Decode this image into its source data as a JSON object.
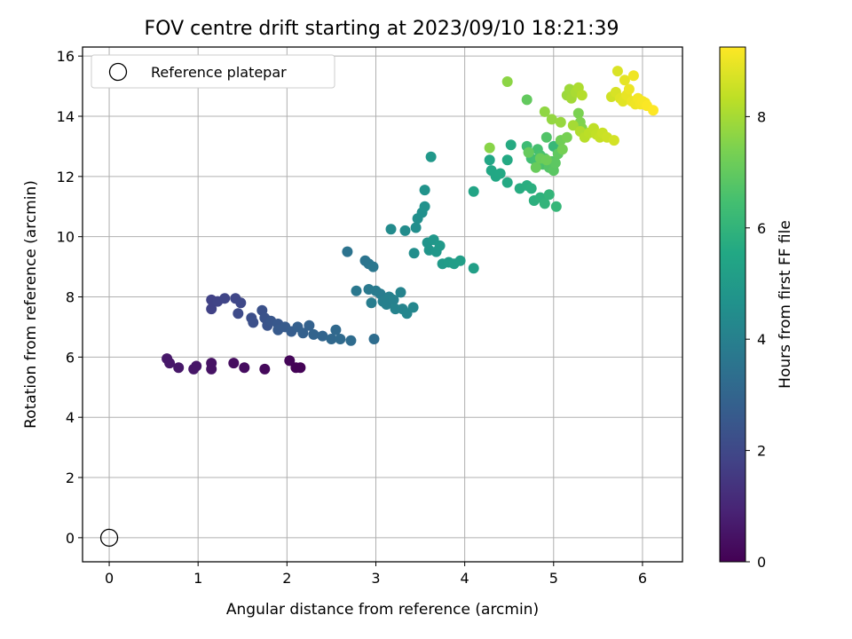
{
  "chart_data": {
    "type": "scatter",
    "title": "FOV centre drift starting at 2023/09/10 18:21:39",
    "xlabel": "Angular distance from reference (arcmin)",
    "ylabel": "Rotation from reference (arcmin)",
    "xlim": [
      -0.3,
      6.45
    ],
    "ylim": [
      -0.8,
      16.3
    ],
    "xticks": [
      0,
      1,
      2,
      3,
      4,
      5,
      6
    ],
    "yticks": [
      0,
      2,
      4,
      6,
      8,
      10,
      12,
      14,
      16
    ],
    "grid": true,
    "legend": {
      "position": "upper-left",
      "entries": [
        "Reference platepar"
      ]
    },
    "reference_point": {
      "x": 0,
      "y": 0
    },
    "colorbar": {
      "label": "Hours from first FF file",
      "min": 0,
      "max": 9.25,
      "ticks": [
        0,
        2,
        4,
        6,
        8
      ],
      "colormap": "viridis"
    },
    "points": [
      [
        0.65,
        5.95,
        0.6
      ],
      [
        0.68,
        5.8,
        0.6
      ],
      [
        0.78,
        5.65,
        0.6
      ],
      [
        0.95,
        5.6,
        0.55
      ],
      [
        0.98,
        5.7,
        0.55
      ],
      [
        1.15,
        5.8,
        0.45
      ],
      [
        1.15,
        5.6,
        0.45
      ],
      [
        1.4,
        5.8,
        0.35
      ],
      [
        1.52,
        5.65,
        0.3
      ],
      [
        1.75,
        5.6,
        0.2
      ],
      [
        2.03,
        5.88,
        0.1
      ],
      [
        2.1,
        5.65,
        0.05
      ],
      [
        2.15,
        5.65,
        0.05
      ],
      [
        1.15,
        7.9,
        1.8
      ],
      [
        1.15,
        7.6,
        1.8
      ],
      [
        1.22,
        7.85,
        1.85
      ],
      [
        1.3,
        7.95,
        1.9
      ],
      [
        1.42,
        7.95,
        1.95
      ],
      [
        1.48,
        7.8,
        2.0
      ],
      [
        1.45,
        7.45,
        2.1
      ],
      [
        1.6,
        7.3,
        2.2
      ],
      [
        1.62,
        7.15,
        2.25
      ],
      [
        1.72,
        7.55,
        2.3
      ],
      [
        1.75,
        7.3,
        2.35
      ],
      [
        1.78,
        7.05,
        2.4
      ],
      [
        1.82,
        7.2,
        2.45
      ],
      [
        1.9,
        7.1,
        2.55
      ],
      [
        1.9,
        6.9,
        2.6
      ],
      [
        1.98,
        7.0,
        2.65
      ],
      [
        2.05,
        6.85,
        2.7
      ],
      [
        2.12,
        7.0,
        2.8
      ],
      [
        2.18,
        6.8,
        2.85
      ],
      [
        2.25,
        7.05,
        2.9
      ],
      [
        2.3,
        6.75,
        2.95
      ],
      [
        2.4,
        6.7,
        3.0
      ],
      [
        2.5,
        6.6,
        3.1
      ],
      [
        2.55,
        6.9,
        3.15
      ],
      [
        2.6,
        6.6,
        3.2
      ],
      [
        2.72,
        6.55,
        3.25
      ],
      [
        2.98,
        6.6,
        3.3
      ],
      [
        2.68,
        9.5,
        3.5
      ],
      [
        2.88,
        9.2,
        3.55
      ],
      [
        2.92,
        9.1,
        3.6
      ],
      [
        2.97,
        9.0,
        3.65
      ],
      [
        2.78,
        8.2,
        3.7
      ],
      [
        2.92,
        8.25,
        3.75
      ],
      [
        3.0,
        8.2,
        3.8
      ],
      [
        3.05,
        8.1,
        3.85
      ],
      [
        2.95,
        7.8,
        3.9
      ],
      [
        3.08,
        7.85,
        3.95
      ],
      [
        3.12,
        7.75,
        4.0
      ],
      [
        3.15,
        8.0,
        4.0
      ],
      [
        3.2,
        7.9,
        4.05
      ],
      [
        3.22,
        7.6,
        4.1
      ],
      [
        3.28,
        8.15,
        4.1
      ],
      [
        3.3,
        7.6,
        4.15
      ],
      [
        3.35,
        7.45,
        4.2
      ],
      [
        3.42,
        7.65,
        4.25
      ],
      [
        3.17,
        10.25,
        4.4
      ],
      [
        3.33,
        10.2,
        4.45
      ],
      [
        3.43,
        9.45,
        4.5
      ],
      [
        3.45,
        10.3,
        4.5
      ],
      [
        3.47,
        10.6,
        4.55
      ],
      [
        3.52,
        10.8,
        4.6
      ],
      [
        3.55,
        11.0,
        4.65
      ],
      [
        3.55,
        11.55,
        4.7
      ],
      [
        3.58,
        9.8,
        4.75
      ],
      [
        3.6,
        9.55,
        4.8
      ],
      [
        3.65,
        9.9,
        4.85
      ],
      [
        3.62,
        12.65,
        4.9
      ],
      [
        3.68,
        9.5,
        4.9
      ],
      [
        3.72,
        9.7,
        4.95
      ],
      [
        3.75,
        9.1,
        5.0
      ],
      [
        3.82,
        9.15,
        5.05
      ],
      [
        3.88,
        9.1,
        5.1
      ],
      [
        3.95,
        9.2,
        5.15
      ],
      [
        4.1,
        8.95,
        5.2
      ],
      [
        4.1,
        11.5,
        5.4
      ],
      [
        4.28,
        12.55,
        5.45
      ],
      [
        4.3,
        12.2,
        5.5
      ],
      [
        4.35,
        12.0,
        5.5
      ],
      [
        4.4,
        12.1,
        5.55
      ],
      [
        4.48,
        11.8,
        5.6
      ],
      [
        4.48,
        12.55,
        5.6
      ],
      [
        4.52,
        13.05,
        5.65
      ],
      [
        4.62,
        11.6,
        5.7
      ],
      [
        4.7,
        11.7,
        5.75
      ],
      [
        4.75,
        11.6,
        5.8
      ],
      [
        4.78,
        11.2,
        5.85
      ],
      [
        4.85,
        11.3,
        5.9
      ],
      [
        4.9,
        11.1,
        6.0
      ],
      [
        4.95,
        11.4,
        6.05
      ],
      [
        5.03,
        11.0,
        6.1
      ],
      [
        5.0,
        13.0,
        6.15
      ],
      [
        5.05,
        12.8,
        6.2
      ],
      [
        4.7,
        13.0,
        6.3
      ],
      [
        4.72,
        12.8,
        6.35
      ],
      [
        4.75,
        12.6,
        6.4
      ],
      [
        4.8,
        12.5,
        6.45
      ],
      [
        4.82,
        12.9,
        6.5
      ],
      [
        4.85,
        12.7,
        6.55
      ],
      [
        4.88,
        12.4,
        6.6
      ],
      [
        4.9,
        12.6,
        6.65
      ],
      [
        4.92,
        13.3,
        6.7
      ],
      [
        4.95,
        12.3,
        6.75
      ],
      [
        4.98,
        12.5,
        6.8
      ],
      [
        5.0,
        12.2,
        6.85
      ],
      [
        5.02,
        12.45,
        6.9
      ],
      [
        5.05,
        12.75,
        6.95
      ],
      [
        4.7,
        14.55,
        7.0
      ],
      [
        4.72,
        12.8,
        7.05
      ],
      [
        4.8,
        12.3,
        7.1
      ],
      [
        4.85,
        12.6,
        7.15
      ],
      [
        4.92,
        12.55,
        7.2
      ],
      [
        5.08,
        13.2,
        7.25
      ],
      [
        5.1,
        12.9,
        7.3
      ],
      [
        5.15,
        13.3,
        7.35
      ],
      [
        5.28,
        14.1,
        7.4
      ],
      [
        5.3,
        13.8,
        7.45
      ],
      [
        5.32,
        13.6,
        7.5
      ],
      [
        4.28,
        12.95,
        7.6
      ],
      [
        4.48,
        15.15,
        7.65
      ],
      [
        4.9,
        14.15,
        7.7
      ],
      [
        4.98,
        13.9,
        7.75
      ],
      [
        5.08,
        13.8,
        7.8
      ],
      [
        5.15,
        14.7,
        7.85
      ],
      [
        5.18,
        14.9,
        7.9
      ],
      [
        5.2,
        14.6,
        7.95
      ],
      [
        5.22,
        13.7,
        8.0
      ],
      [
        5.25,
        14.8,
        8.05
      ],
      [
        5.28,
        14.95,
        8.1
      ],
      [
        5.3,
        13.5,
        8.15
      ],
      [
        5.32,
        14.7,
        8.2
      ],
      [
        5.35,
        13.3,
        8.25
      ],
      [
        5.4,
        13.45,
        8.3
      ],
      [
        5.45,
        13.6,
        8.35
      ],
      [
        5.48,
        13.4,
        8.4
      ],
      [
        5.52,
        13.3,
        8.45
      ],
      [
        5.55,
        13.45,
        8.5
      ],
      [
        5.6,
        13.3,
        8.55
      ],
      [
        5.65,
        14.65,
        8.6
      ],
      [
        5.68,
        13.2,
        8.65
      ],
      [
        5.7,
        14.8,
        8.7
      ],
      [
        5.72,
        15.5,
        8.75
      ],
      [
        5.75,
        14.6,
        8.8
      ],
      [
        5.78,
        14.5,
        8.85
      ],
      [
        5.8,
        15.2,
        8.9
      ],
      [
        5.82,
        14.7,
        8.95
      ],
      [
        5.85,
        14.9,
        9.0
      ],
      [
        5.88,
        14.5,
        9.0
      ],
      [
        5.9,
        15.35,
        9.05
      ],
      [
        5.92,
        14.4,
        9.05
      ],
      [
        5.95,
        14.6,
        9.1
      ],
      [
        5.98,
        14.4,
        9.1
      ],
      [
        6.0,
        14.5,
        9.15
      ],
      [
        6.03,
        14.45,
        9.15
      ],
      [
        6.05,
        14.35,
        9.2
      ],
      [
        6.12,
        14.2,
        9.25
      ]
    ]
  }
}
